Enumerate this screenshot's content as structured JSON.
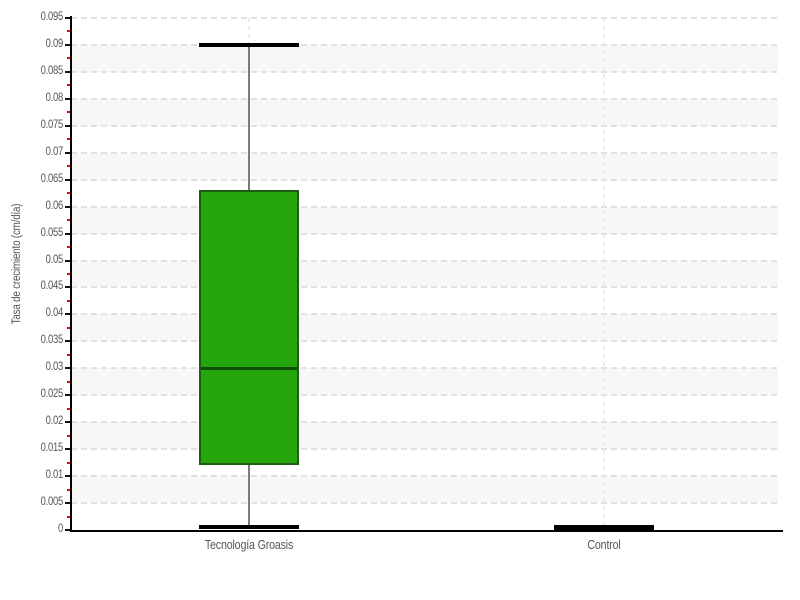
{
  "chart_data": {
    "type": "boxplot",
    "title": "",
    "ylabel": "Tasa de crecimiento (cm/día)",
    "xlabel": "",
    "ylim": [
      0,
      0.095
    ],
    "ytick_step": 0.005,
    "yticks": [
      "0",
      "0.005",
      "0.01",
      "0.015",
      "0.02",
      "0.025",
      "0.03",
      "0.035",
      "0.04",
      "0.045",
      "0.05",
      "0.055",
      "0.06",
      "0.065",
      "0.07",
      "0.075",
      "0.08",
      "0.085",
      "0.09",
      "0.095"
    ],
    "minor_ticks_at_midpoints": true,
    "grid": "horizontal dashed lines each 0.005, alternating shaded bands, dashed vertical line at each category center",
    "legend_position": "none",
    "categories": [
      "Tecnología Groasis",
      "Control"
    ],
    "series": [
      {
        "name": "Tecnología Groasis",
        "min": 0.0005,
        "q1": 0.012,
        "median": 0.03,
        "q3": 0.063,
        "max": 0.09
      },
      {
        "name": "Control",
        "min": 0,
        "q1": 0,
        "median": 0.0005,
        "q3": 0.0005,
        "max": 0.0005
      }
    ],
    "colors": {
      "box_fill": "#26a60d",
      "box_border": "#1e5c14",
      "median_line": "#104f09",
      "whisker_stem": "#7b7b7b",
      "whisker_cap": "#000000",
      "band": "#f7f7f7",
      "gridline": "#e1e1e1",
      "axis": "#000000",
      "minor_tick": "#ff0000",
      "text": "#555555",
      "background": "#ffffff"
    }
  }
}
